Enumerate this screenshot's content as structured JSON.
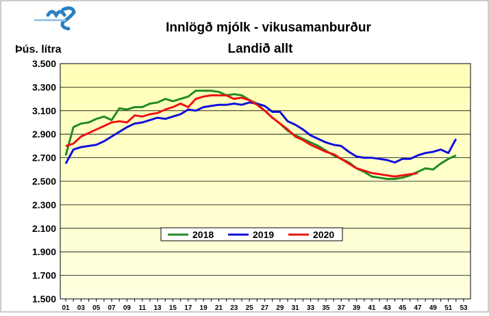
{
  "chart_data": {
    "type": "line",
    "title": "Innlögð mjólk - vikusamanburður",
    "subtitle": "Landið allt",
    "y_label": "Þús. lítra",
    "categories": [
      "01",
      null,
      "03",
      null,
      "05",
      null,
      "07",
      null,
      "09",
      null,
      "11",
      null,
      "13",
      null,
      "15",
      null,
      "17",
      null,
      "19",
      null,
      "21",
      null,
      "23",
      null,
      "25",
      null,
      "27",
      null,
      "29",
      null,
      "31",
      null,
      "33",
      null,
      "35",
      null,
      "37",
      null,
      "39",
      null,
      "41",
      null,
      "43",
      null,
      "45",
      null,
      "47",
      null,
      "49",
      null,
      "51",
      null,
      "53"
    ],
    "series": [
      {
        "name": "2018",
        "color": "#218a21",
        "values": [
          2720,
          2960,
          2990,
          3000,
          3030,
          3050,
          3020,
          3120,
          3110,
          3130,
          3130,
          3160,
          3170,
          3200,
          3180,
          3200,
          3220,
          3270,
          3270,
          3270,
          3260,
          3230,
          3240,
          3230,
          3190,
          3160,
          3100,
          3040,
          2990,
          2930,
          2890,
          2860,
          2830,
          2800,
          2760,
          2720,
          2690,
          2660,
          2610,
          2580,
          2540,
          2530,
          2520,
          2520,
          2530,
          2550,
          2580,
          2610,
          2600,
          2650,
          2690,
          2720,
          null
        ]
      },
      {
        "name": "2019",
        "color": "#0d0ddc",
        "values": [
          2650,
          2770,
          2790,
          2800,
          2810,
          2840,
          2880,
          2920,
          2960,
          2990,
          3000,
          3020,
          3040,
          3030,
          3050,
          3070,
          3110,
          3100,
          3130,
          3140,
          3150,
          3150,
          3160,
          3150,
          3170,
          3160,
          3140,
          3090,
          3090,
          3010,
          2980,
          2940,
          2890,
          2860,
          2830,
          2810,
          2800,
          2750,
          2710,
          2700,
          2700,
          2690,
          2680,
          2660,
          2690,
          2690,
          2720,
          2740,
          2750,
          2770,
          2740,
          2860,
          null
        ]
      },
      {
        "name": "2020",
        "color": "#ee1111",
        "values": [
          2800,
          2820,
          2880,
          2910,
          2940,
          2970,
          3000,
          3010,
          3000,
          3060,
          3050,
          3070,
          3080,
          3110,
          3130,
          3160,
          3130,
          3200,
          3220,
          3230,
          3230,
          3230,
          3200,
          3210,
          3190,
          3150,
          3100,
          3040,
          2990,
          2940,
          2880,
          2850,
          2810,
          2780,
          2750,
          2730,
          2690,
          2650,
          2610,
          2590,
          2570,
          2560,
          2550,
          2540,
          2550,
          2560,
          2570,
          null,
          null,
          null,
          null,
          null,
          null
        ]
      }
    ],
    "ylim": [
      1500,
      3500
    ],
    "yticks": [
      {
        "value": 1500,
        "label": "1.500"
      },
      {
        "value": 1700,
        "label": "1.700"
      },
      {
        "value": 1900,
        "label": "1.900"
      },
      {
        "value": 2100,
        "label": "2.100"
      },
      {
        "value": 2300,
        "label": "2.300"
      },
      {
        "value": 2500,
        "label": "2.500"
      },
      {
        "value": 2700,
        "label": "2.700"
      },
      {
        "value": 2900,
        "label": "2.900"
      },
      {
        "value": 3100,
        "label": "3.100"
      },
      {
        "value": 3300,
        "label": "3.300"
      },
      {
        "value": 3500,
        "label": "3.500"
      }
    ],
    "grid": true,
    "legend": "center"
  }
}
